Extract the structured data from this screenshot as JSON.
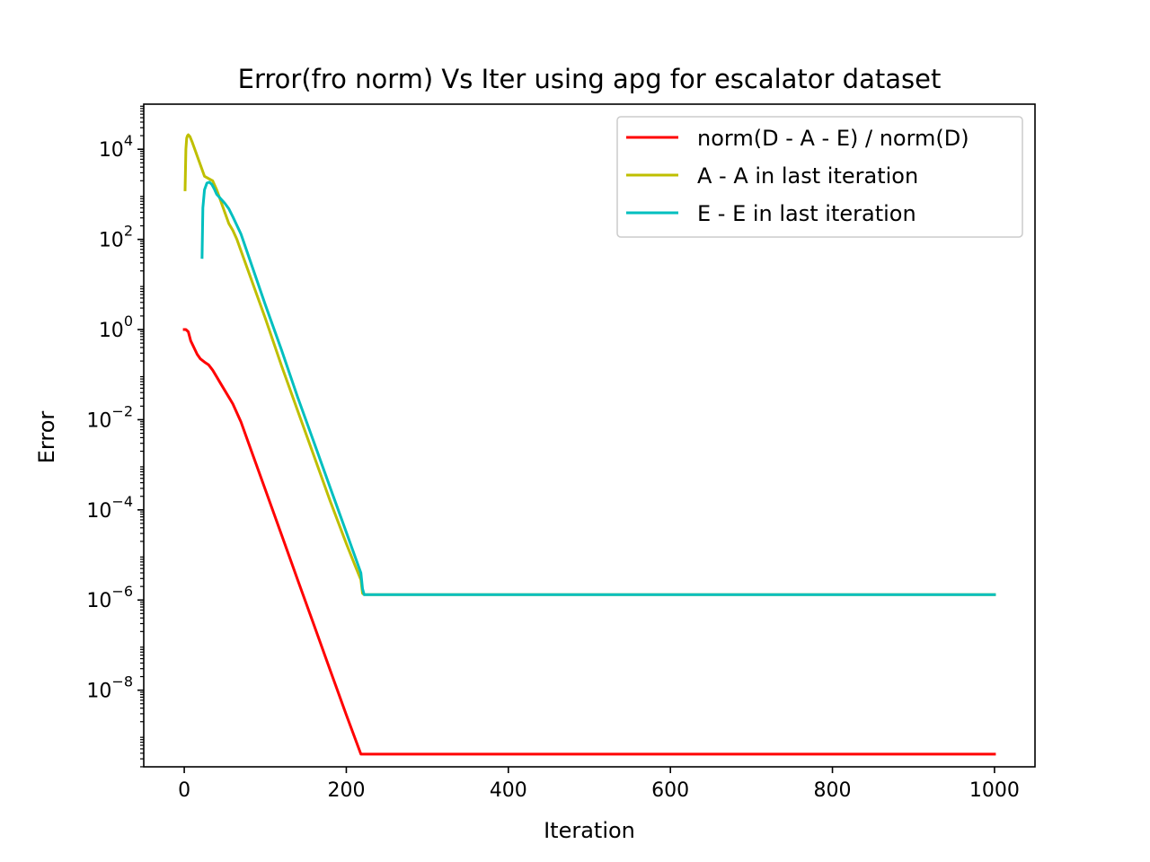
{
  "chart_data": {
    "type": "line",
    "title": "Error(fro norm) Vs Iter using apg for escalator dataset",
    "xlabel": "Iteration",
    "ylabel": "Error",
    "xlim": [
      -50,
      1050
    ],
    "ylim_log10": [
      -9.7,
      5.0
    ],
    "y_scale": "log",
    "xticks": [
      0,
      200,
      400,
      600,
      800,
      1000
    ],
    "xtick_labels": [
      "0",
      "200",
      "400",
      "600",
      "800",
      "1000"
    ],
    "yticks_log10": [
      4,
      2,
      0,
      -2,
      -4,
      -6,
      -8
    ],
    "ytick_labels": [
      {
        "base": "10",
        "exp": "4"
      },
      {
        "base": "10",
        "exp": "2"
      },
      {
        "base": "10",
        "exp": "0"
      },
      {
        "base": "10",
        "exp": "−2"
      },
      {
        "base": "10",
        "exp": "−4"
      },
      {
        "base": "10",
        "exp": "−6"
      },
      {
        "base": "10",
        "exp": "−8"
      }
    ],
    "legend_position": "top-right",
    "grid": false,
    "series": [
      {
        "name": "norm(D - A - E) / norm(D)",
        "color": "#ff0000",
        "x": [
          0,
          2,
          5,
          8,
          12,
          16,
          20,
          25,
          30,
          35,
          40,
          45,
          50,
          55,
          60,
          65,
          70,
          80,
          100,
          120,
          140,
          160,
          180,
          200,
          218,
          221,
          225,
          240,
          300,
          400,
          500,
          600,
          700,
          800,
          900,
          1000
        ],
        "y_log10": [
          0.0,
          0.0,
          -0.05,
          -0.25,
          -0.4,
          -0.55,
          -0.65,
          -0.72,
          -0.78,
          -0.9,
          -1.05,
          -1.2,
          -1.35,
          -1.5,
          -1.65,
          -1.85,
          -2.05,
          -2.55,
          -3.55,
          -4.55,
          -5.55,
          -6.55,
          -7.55,
          -8.55,
          -9.42,
          -9.42,
          -9.42,
          -9.42,
          -9.42,
          -9.42,
          -9.42,
          -9.42,
          -9.42,
          -9.42,
          -9.42,
          -9.42
        ]
      },
      {
        "name": "A - A in last iteration",
        "color": "#bfbf00",
        "x": [
          1,
          2,
          3,
          4,
          5,
          7,
          10,
          15,
          20,
          25,
          30,
          35,
          40,
          45,
          50,
          55,
          60,
          65,
          70,
          80,
          100,
          120,
          140,
          160,
          180,
          200,
          210,
          218,
          220,
          222,
          225,
          250,
          300,
          400,
          500,
          600,
          700,
          800,
          900,
          1000
        ],
        "y_log10": [
          3.1,
          4.0,
          4.25,
          4.3,
          4.32,
          4.28,
          4.15,
          3.9,
          3.65,
          3.4,
          3.35,
          3.3,
          3.1,
          2.85,
          2.6,
          2.35,
          2.2,
          2.0,
          1.75,
          1.25,
          0.25,
          -0.8,
          -1.8,
          -2.8,
          -3.8,
          -4.75,
          -5.2,
          -5.55,
          -5.85,
          -5.88,
          -5.88,
          -5.88,
          -5.88,
          -5.88,
          -5.88,
          -5.88,
          -5.88,
          -5.88,
          -5.88,
          -5.88
        ]
      },
      {
        "name": "E - E in last iteration",
        "color": "#00bfbf",
        "x": [
          22,
          23,
          25,
          28,
          31,
          34,
          37,
          40,
          45,
          50,
          55,
          60,
          70,
          80,
          100,
          120,
          140,
          160,
          180,
          200,
          210,
          218,
          220,
          222,
          225,
          250,
          300,
          400,
          500,
          600,
          700,
          800,
          900,
          1000
        ],
        "y_log10": [
          1.6,
          2.7,
          3.1,
          3.25,
          3.27,
          3.22,
          3.12,
          3.0,
          2.9,
          2.8,
          2.68,
          2.5,
          2.12,
          1.6,
          0.55,
          -0.45,
          -1.5,
          -2.5,
          -3.5,
          -4.5,
          -5.0,
          -5.4,
          -5.75,
          -5.88,
          -5.88,
          -5.88,
          -5.88,
          -5.88,
          -5.88,
          -5.88,
          -5.88,
          -5.88,
          -5.88,
          -5.88
        ]
      }
    ]
  }
}
